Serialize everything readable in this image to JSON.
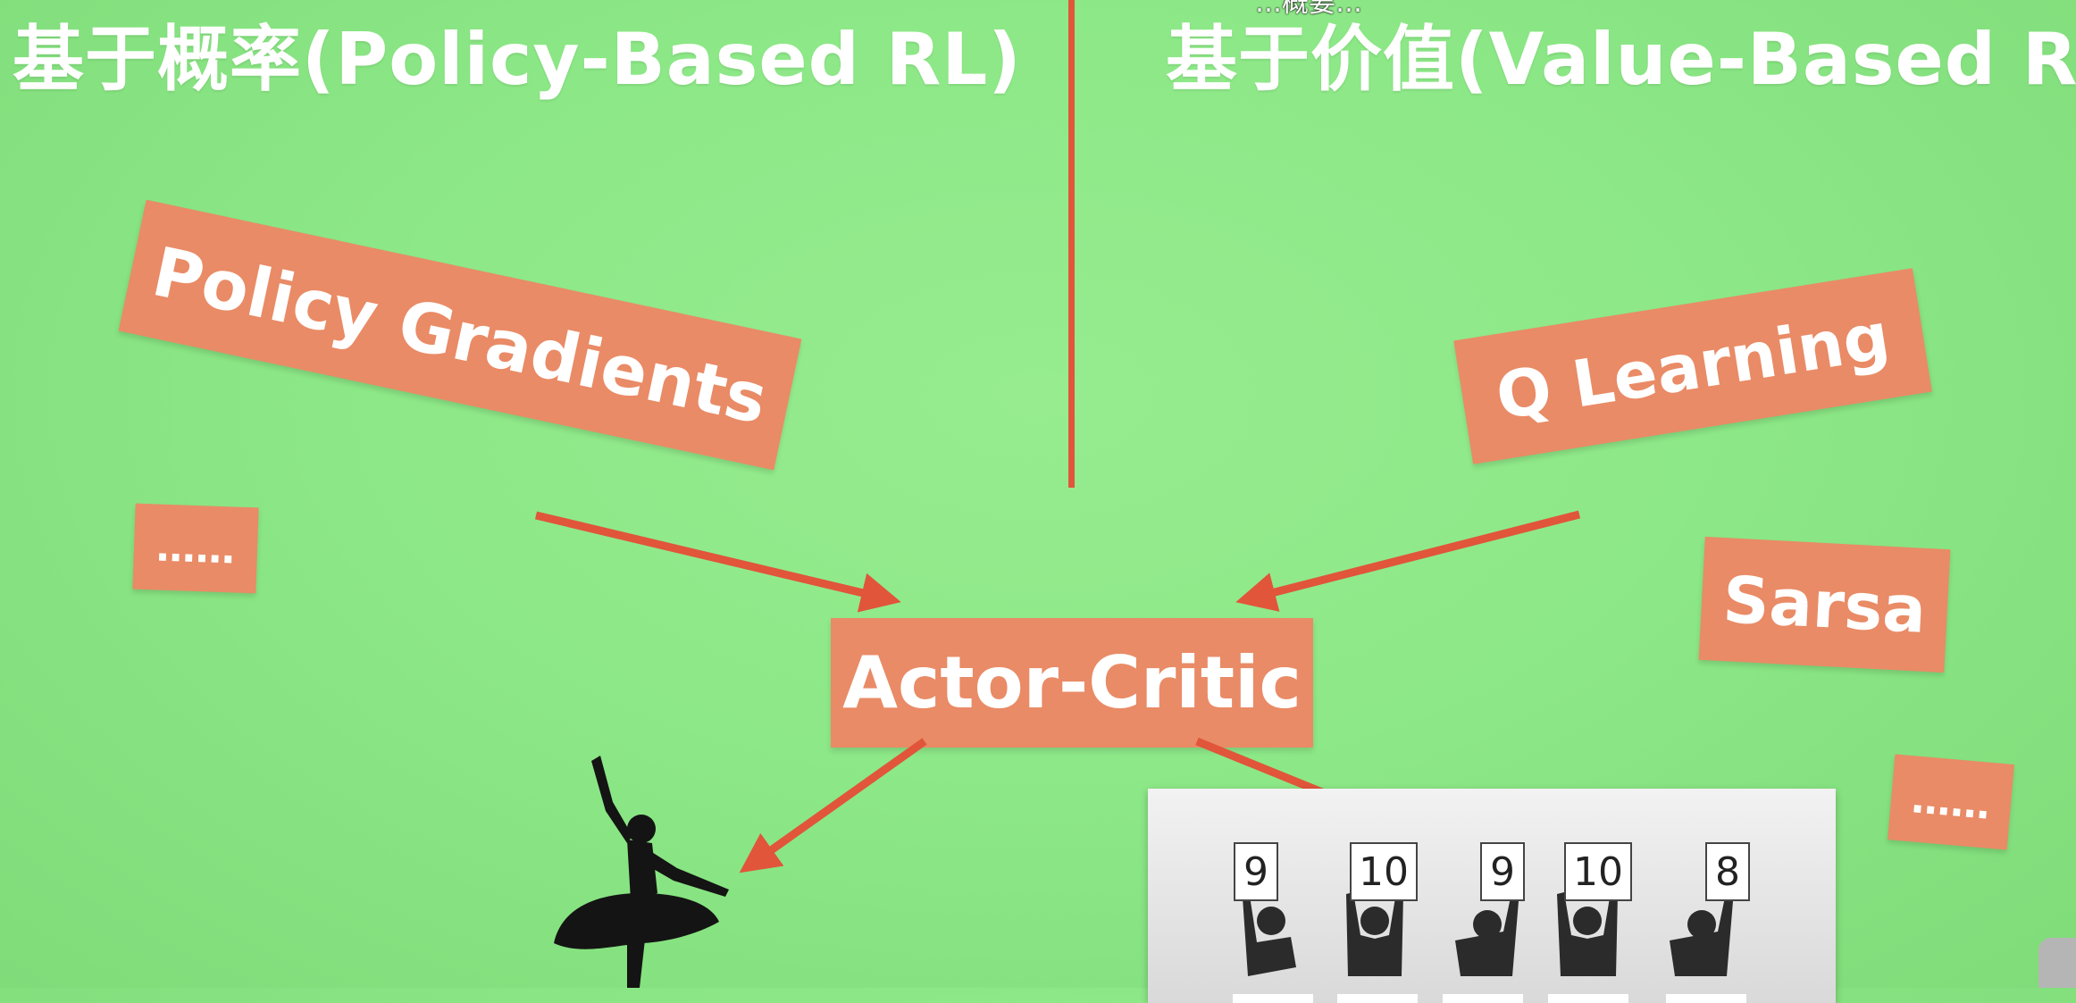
{
  "headings": {
    "left": "基于概率(Policy-Based RL)",
    "right": "基于价值(Value-Based RL)"
  },
  "caption_fragment": "…概要…",
  "boxes": {
    "policy_gradients": "Policy Gradients",
    "q_learning": "Q Learning",
    "sarsa": "Sarsa",
    "actor_critic": "Actor-Critic",
    "ellipsis_left": "……",
    "ellipsis_right": "……"
  },
  "judges": {
    "scores": [
      "9",
      "10",
      "9",
      "10",
      "8"
    ]
  },
  "colors": {
    "background": "#8de887",
    "box": "#e98b66",
    "arrow": "#e1553b",
    "text": "#ffffff"
  },
  "icons": [
    "ballerina-silhouette",
    "judges-scoring-illustration"
  ]
}
